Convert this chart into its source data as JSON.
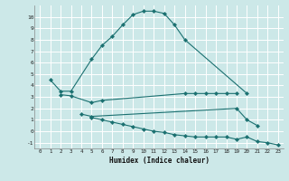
{
  "xlabel": "Humidex (Indice chaleur)",
  "bg_color": "#cce8e8",
  "line_color": "#1a7070",
  "grid_color": "#ffffff",
  "xlim": [
    -0.5,
    23.5
  ],
  "ylim": [
    -1.5,
    11.0
  ],
  "yticks": [
    -1,
    0,
    1,
    2,
    3,
    4,
    5,
    6,
    7,
    8,
    9,
    10
  ],
  "xticks": [
    0,
    1,
    2,
    3,
    4,
    5,
    6,
    7,
    8,
    9,
    10,
    11,
    12,
    13,
    14,
    15,
    16,
    17,
    18,
    19,
    20,
    21,
    22,
    23
  ],
  "segments": [
    {
      "x": [
        1,
        2,
        3,
        5,
        6,
        7,
        8,
        9,
        10,
        11,
        12,
        13,
        14,
        20
      ],
      "y": [
        4.5,
        3.5,
        3.5,
        6.3,
        7.5,
        8.3,
        9.3,
        10.2,
        10.5,
        10.5,
        10.3,
        9.3,
        8.0,
        3.3
      ]
    },
    {
      "x": [
        2,
        3,
        5,
        6,
        14,
        15,
        16,
        17,
        18,
        19
      ],
      "y": [
        3.2,
        3.1,
        2.5,
        2.7,
        3.3,
        3.3,
        3.3,
        3.3,
        3.3,
        3.3
      ]
    },
    {
      "x": [
        4,
        5,
        19,
        20,
        21
      ],
      "y": [
        1.5,
        1.3,
        2.0,
        1.0,
        0.5
      ]
    },
    {
      "x": [
        5,
        6,
        7,
        8,
        9,
        10,
        11,
        12,
        13,
        14,
        15,
        16,
        17,
        18,
        19,
        20,
        21,
        22,
        23
      ],
      "y": [
        1.2,
        1.0,
        0.8,
        0.6,
        0.4,
        0.2,
        0.0,
        -0.1,
        -0.3,
        -0.4,
        -0.5,
        -0.5,
        -0.5,
        -0.5,
        -0.7,
        -0.5,
        -0.9,
        -1.0,
        -1.2
      ]
    }
  ]
}
